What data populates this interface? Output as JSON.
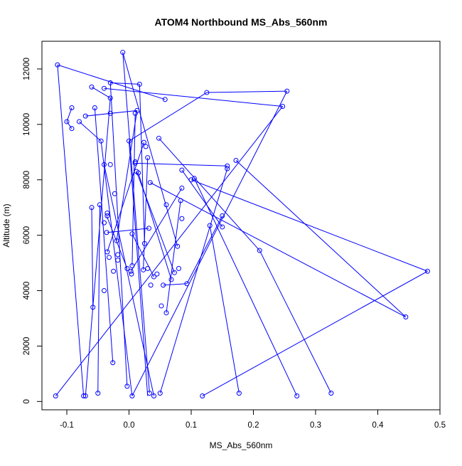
{
  "chart_data": {
    "type": "line",
    "title": "ATOM4 Northbound MS_Abs_560nm",
    "xlabel": "MS_Abs_560nm",
    "ylabel": "Altitude (m)",
    "xlim": [
      -0.14,
      0.5
    ],
    "ylim": [
      -300,
      13000
    ],
    "xticks": [
      -0.1,
      0.0,
      0.1,
      0.2,
      0.3,
      0.4,
      0.5
    ],
    "xtick_labels": [
      "-0.1",
      "0.0",
      "0.1",
      "0.2",
      "0.3",
      "0.4",
      "0.5"
    ],
    "yticks": [
      0,
      2000,
      4000,
      6000,
      8000,
      10000,
      12000
    ],
    "ytick_labels": [
      "0",
      "2000",
      "4000",
      "6000",
      "8000",
      "10000",
      "12000"
    ],
    "grid": false,
    "legend": "none",
    "series": [
      {
        "color": "#0000ff",
        "marker": "open-circle",
        "points": [
          [
            -0.115,
            12150
          ],
          [
            -0.073,
            200
          ],
          [
            0.058,
            10900
          ],
          [
            0.033,
            300
          ],
          [
            -0.01,
            12600
          ],
          [
            0.078,
            5600
          ],
          [
            -0.03,
            11500
          ],
          [
            -0.003,
            550
          ],
          [
            0.254,
            11200
          ],
          [
            0.125,
            11150
          ],
          [
            0.005,
            200
          ],
          [
            0.017,
            11450
          ],
          [
            0.0,
            9400
          ],
          [
            0.247,
            10650
          ],
          [
            -0.118,
            200
          ],
          [
            -0.04,
            11300
          ],
          [
            0.01,
            10400
          ],
          [
            -0.04,
            4000
          ],
          [
            -0.06,
            11350
          ],
          [
            -0.03,
            10950
          ],
          [
            -0.055,
            10600
          ],
          [
            -0.026,
            1400
          ],
          [
            -0.1,
            10100
          ],
          [
            -0.092,
            10600
          ],
          [
            -0.03,
            10400
          ],
          [
            -0.092,
            9850
          ],
          [
            -0.07,
            10300
          ],
          [
            0.013,
            10500
          ],
          [
            -0.08,
            10100
          ],
          [
            -0.045,
            9400
          ],
          [
            0.158,
            8500
          ],
          [
            0.01,
            8600
          ],
          [
            0.024,
            9350
          ],
          [
            0.027,
            9200
          ],
          [
            0.03,
            8800
          ],
          [
            -0.047,
            7100
          ],
          [
            -0.03,
            8550
          ],
          [
            0.085,
            6600
          ],
          [
            0.012,
            8300
          ],
          [
            -0.04,
            8550
          ],
          [
            0.158,
            8400
          ],
          [
            0.05,
            300
          ],
          [
            0.105,
            8050
          ],
          [
            0.1,
            8000
          ],
          [
            0.085,
            8350
          ],
          [
            0.15,
            6700
          ],
          [
            0.21,
            5450
          ],
          [
            0.325,
            300
          ],
          [
            0.048,
            9500
          ],
          [
            0.015,
            8250
          ],
          [
            0.445,
            3050
          ],
          [
            0.01,
            8650
          ],
          [
            0.27,
            200
          ],
          [
            0.06,
            7100
          ],
          [
            -0.06,
            7000
          ],
          [
            -0.036,
            6100
          ],
          [
            0.083,
            7250
          ],
          [
            0.055,
            4200
          ],
          [
            -0.023,
            7500
          ],
          [
            0.172,
            8700
          ],
          [
            -0.05,
            300
          ],
          [
            0.034,
            7900
          ],
          [
            0.085,
            7700
          ],
          [
            0.48,
            4700
          ],
          [
            0.13,
            6350
          ],
          [
            0.118,
            200
          ],
          [
            0.15,
            6300
          ],
          [
            0.093,
            4250
          ],
          [
            0.052,
            3450
          ],
          [
            -0.07,
            200
          ],
          [
            -0.058,
            3400
          ],
          [
            -0.04,
            6450
          ],
          [
            -0.035,
            6700
          ],
          [
            -0.035,
            6800
          ],
          [
            0.032,
            6250
          ],
          [
            0.177,
            300
          ],
          [
            0.005,
            6050
          ],
          [
            -0.02,
            5800
          ],
          [
            -0.018,
            5300
          ],
          [
            0.025,
            5700
          ],
          [
            0.04,
            200
          ],
          [
            -0.035,
            5400
          ],
          [
            -0.032,
            5200
          ],
          [
            -0.018,
            5100
          ],
          [
            0.005,
            4900
          ],
          [
            0.08,
            4800
          ],
          [
            0.068,
            4400
          ],
          [
            0.06,
            3200
          ],
          [
            0.003,
            4700
          ],
          [
            -0.003,
            4800
          ],
          [
            0.023,
            4750
          ],
          [
            0.04,
            4500
          ],
          [
            0.073,
            4650
          ],
          [
            0.045,
            4600
          ],
          [
            0.004,
            4600
          ],
          [
            -0.025,
            4700
          ],
          [
            0.035,
            4200
          ],
          [
            0.03,
            4800
          ]
        ],
        "segments": [
          [
            [
              -0.115,
              12150
            ],
            [
              -0.073,
              200
            ]
          ],
          [
            [
              -0.115,
              12150
            ],
            [
              0.058,
              10900
            ]
          ],
          [
            [
              -0.01,
              12600
            ],
            [
              0.078,
              5600
            ]
          ],
          [
            [
              -0.01,
              12600
            ],
            [
              0.033,
              300
            ]
          ],
          [
            [
              -0.03,
              11500
            ],
            [
              0.017,
              11450
            ]
          ],
          [
            [
              -0.03,
              11500
            ],
            [
              -0.003,
              550
            ]
          ],
          [
            [
              0.254,
              11200
            ],
            [
              0.125,
              11150
            ]
          ],
          [
            [
              0.254,
              11200
            ],
            [
              0.005,
              200
            ]
          ],
          [
            [
              0.125,
              11150
            ],
            [
              0.0,
              9400
            ]
          ],
          [
            [
              0.247,
              10650
            ],
            [
              -0.118,
              200
            ]
          ],
          [
            [
              0.247,
              10650
            ],
            [
              -0.04,
              11300
            ]
          ],
          [
            [
              -0.06,
              11350
            ],
            [
              -0.03,
              10950
            ]
          ],
          [
            [
              -0.055,
              10600
            ],
            [
              -0.026,
              1400
            ]
          ],
          [
            [
              -0.1,
              10100
            ],
            [
              -0.092,
              10600
            ]
          ],
          [
            [
              -0.1,
              10100
            ],
            [
              -0.092,
              9850
            ]
          ],
          [
            [
              -0.07,
              10300
            ],
            [
              0.013,
              10500
            ]
          ],
          [
            [
              -0.08,
              10100
            ],
            [
              -0.045,
              9400
            ]
          ],
          [
            [
              0.158,
              8500
            ],
            [
              0.01,
              8600
            ]
          ],
          [
            [
              0.158,
              8400
            ],
            [
              0.05,
              300
            ]
          ],
          [
            [
              0.105,
              8050
            ],
            [
              0.27,
              200
            ]
          ],
          [
            [
              0.172,
              8700
            ],
            [
              0.445,
              3050
            ]
          ],
          [
            [
              0.21,
              5450
            ],
            [
              0.325,
              300
            ]
          ],
          [
            [
              0.048,
              9500
            ],
            [
              0.21,
              5450
            ]
          ],
          [
            [
              0.1,
              8000
            ],
            [
              0.48,
              4700
            ]
          ],
          [
            [
              0.48,
              4700
            ],
            [
              0.118,
              200
            ]
          ],
          [
            [
              0.445,
              3050
            ],
            [
              0.034,
              7900
            ]
          ],
          [
            [
              0.15,
              6700
            ],
            [
              0.093,
              4250
            ]
          ],
          [
            [
              0.13,
              6350
            ],
            [
              0.177,
              300
            ]
          ],
          [
            [
              0.085,
              8350
            ],
            [
              0.15,
              6300
            ]
          ],
          [
            [
              -0.06,
              7000
            ],
            [
              -0.058,
              3400
            ]
          ],
          [
            [
              -0.047,
              7100
            ],
            [
              -0.05,
              300
            ]
          ],
          [
            [
              0.093,
              4250
            ],
            [
              0.055,
              4200
            ]
          ],
          [
            [
              0.083,
              7250
            ],
            [
              0.06,
              3200
            ]
          ],
          [
            [
              -0.03,
              10950
            ],
            [
              -0.07,
              200
            ]
          ],
          [
            [
              -0.04,
              8550
            ],
            [
              0.04,
              200
            ]
          ],
          [
            [
              0.03,
              8800
            ],
            [
              0.023,
              4750
            ]
          ],
          [
            [
              0.0,
              9400
            ],
            [
              0.03,
              200
            ]
          ],
          [
            [
              -0.045,
              9400
            ],
            [
              0.005,
              200
            ]
          ],
          [
            [
              0.024,
              9350
            ],
            [
              -0.035,
              5400
            ]
          ],
          [
            [
              0.01,
              10400
            ],
            [
              0.005,
              4900
            ]
          ],
          [
            [
              0.013,
              10500
            ],
            [
              -0.02,
              5800
            ]
          ],
          [
            [
              0.017,
              11450
            ],
            [
              0.025,
              5700
            ]
          ],
          [
            [
              -0.035,
              6100
            ],
            [
              0.032,
              6250
            ]
          ],
          [
            [
              0.012,
              8300
            ],
            [
              0.073,
              4650
            ]
          ],
          [
            [
              0.015,
              8250
            ],
            [
              0.068,
              4400
            ]
          ],
          [
            [
              -0.036,
              6700
            ],
            [
              -0.003,
              4800
            ]
          ],
          [
            [
              0.005,
              6050
            ],
            [
              0.04,
              4500
            ]
          ],
          [
            [
              0.085,
              7700
            ],
            [
              0.003,
              4700
            ]
          ]
        ]
      }
    ]
  }
}
